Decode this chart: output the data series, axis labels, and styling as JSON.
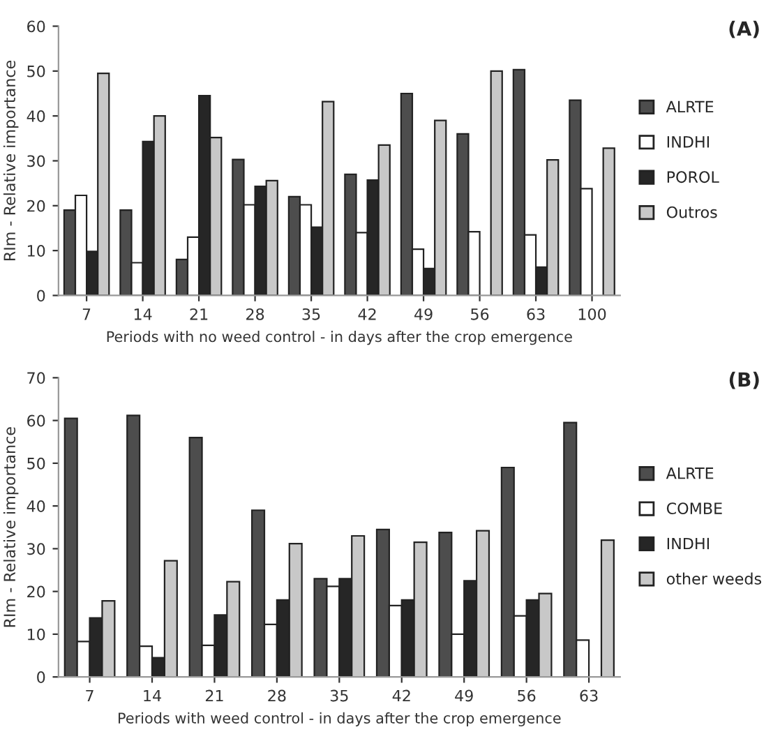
{
  "chart_data": [
    {
      "type": "bar",
      "xlabel": "Periods with no weed control - in days after the crop emergence",
      "ylabel": "RIm - Relative importance",
      "annotations": [
        "(A)"
      ],
      "categories": [
        "7",
        "14",
        "21",
        "28",
        "35",
        "42",
        "49",
        "56",
        "63",
        "100"
      ],
      "ylim": [
        0,
        60
      ],
      "yticks": [
        0,
        10,
        20,
        30,
        40,
        50,
        60
      ],
      "grid": false,
      "legend": "right",
      "series": [
        {
          "name": "ALRTE",
          "color": "#4d4d4d",
          "values": [
            19,
            19,
            8,
            30.3,
            22,
            27,
            45,
            36,
            50.3,
            43.5
          ]
        },
        {
          "name": "INDHI",
          "color": "#ffffff",
          "values": [
            22.3,
            7.3,
            13,
            20.2,
            20.2,
            14,
            10.3,
            14.2,
            13.5,
            23.8
          ]
        },
        {
          "name": "POROL",
          "color": "#262626",
          "values": [
            9.8,
            34.3,
            44.5,
            24.3,
            15.2,
            25.7,
            6,
            null,
            6.3,
            null
          ]
        },
        {
          "name": "Outros",
          "color": "#c8c8c8",
          "values": [
            49.5,
            40,
            35.2,
            25.6,
            43.2,
            33.5,
            39,
            50,
            30.2,
            32.8
          ]
        }
      ]
    },
    {
      "type": "bar",
      "xlabel": "Periods with weed control - in days after the crop emergence",
      "ylabel": "RIm - Relative importance",
      "annotations": [
        "(B)"
      ],
      "categories": [
        "7",
        "14",
        "21",
        "28",
        "35",
        "42",
        "49",
        "56",
        "63"
      ],
      "ylim": [
        0,
        70
      ],
      "yticks": [
        0,
        10,
        20,
        30,
        40,
        50,
        60,
        70
      ],
      "grid": false,
      "legend": "right",
      "series": [
        {
          "name": "ALRTE",
          "color": "#4d4d4d",
          "values": [
            60.5,
            61.2,
            56,
            39,
            23,
            34.5,
            33.8,
            49,
            59.5
          ]
        },
        {
          "name": "COMBE",
          "color": "#ffffff",
          "values": [
            8.3,
            7.2,
            7.4,
            12.3,
            21.2,
            16.7,
            10,
            14.3,
            8.6
          ]
        },
        {
          "name": "INDHI",
          "color": "#262626",
          "values": [
            13.8,
            4.5,
            14.5,
            18,
            23,
            18,
            22.5,
            18,
            null
          ]
        },
        {
          "name": "other weeds",
          "color": "#c8c8c8",
          "values": [
            17.8,
            27.2,
            22.3,
            31.2,
            33,
            31.5,
            34.2,
            19.5,
            32
          ]
        }
      ]
    }
  ]
}
